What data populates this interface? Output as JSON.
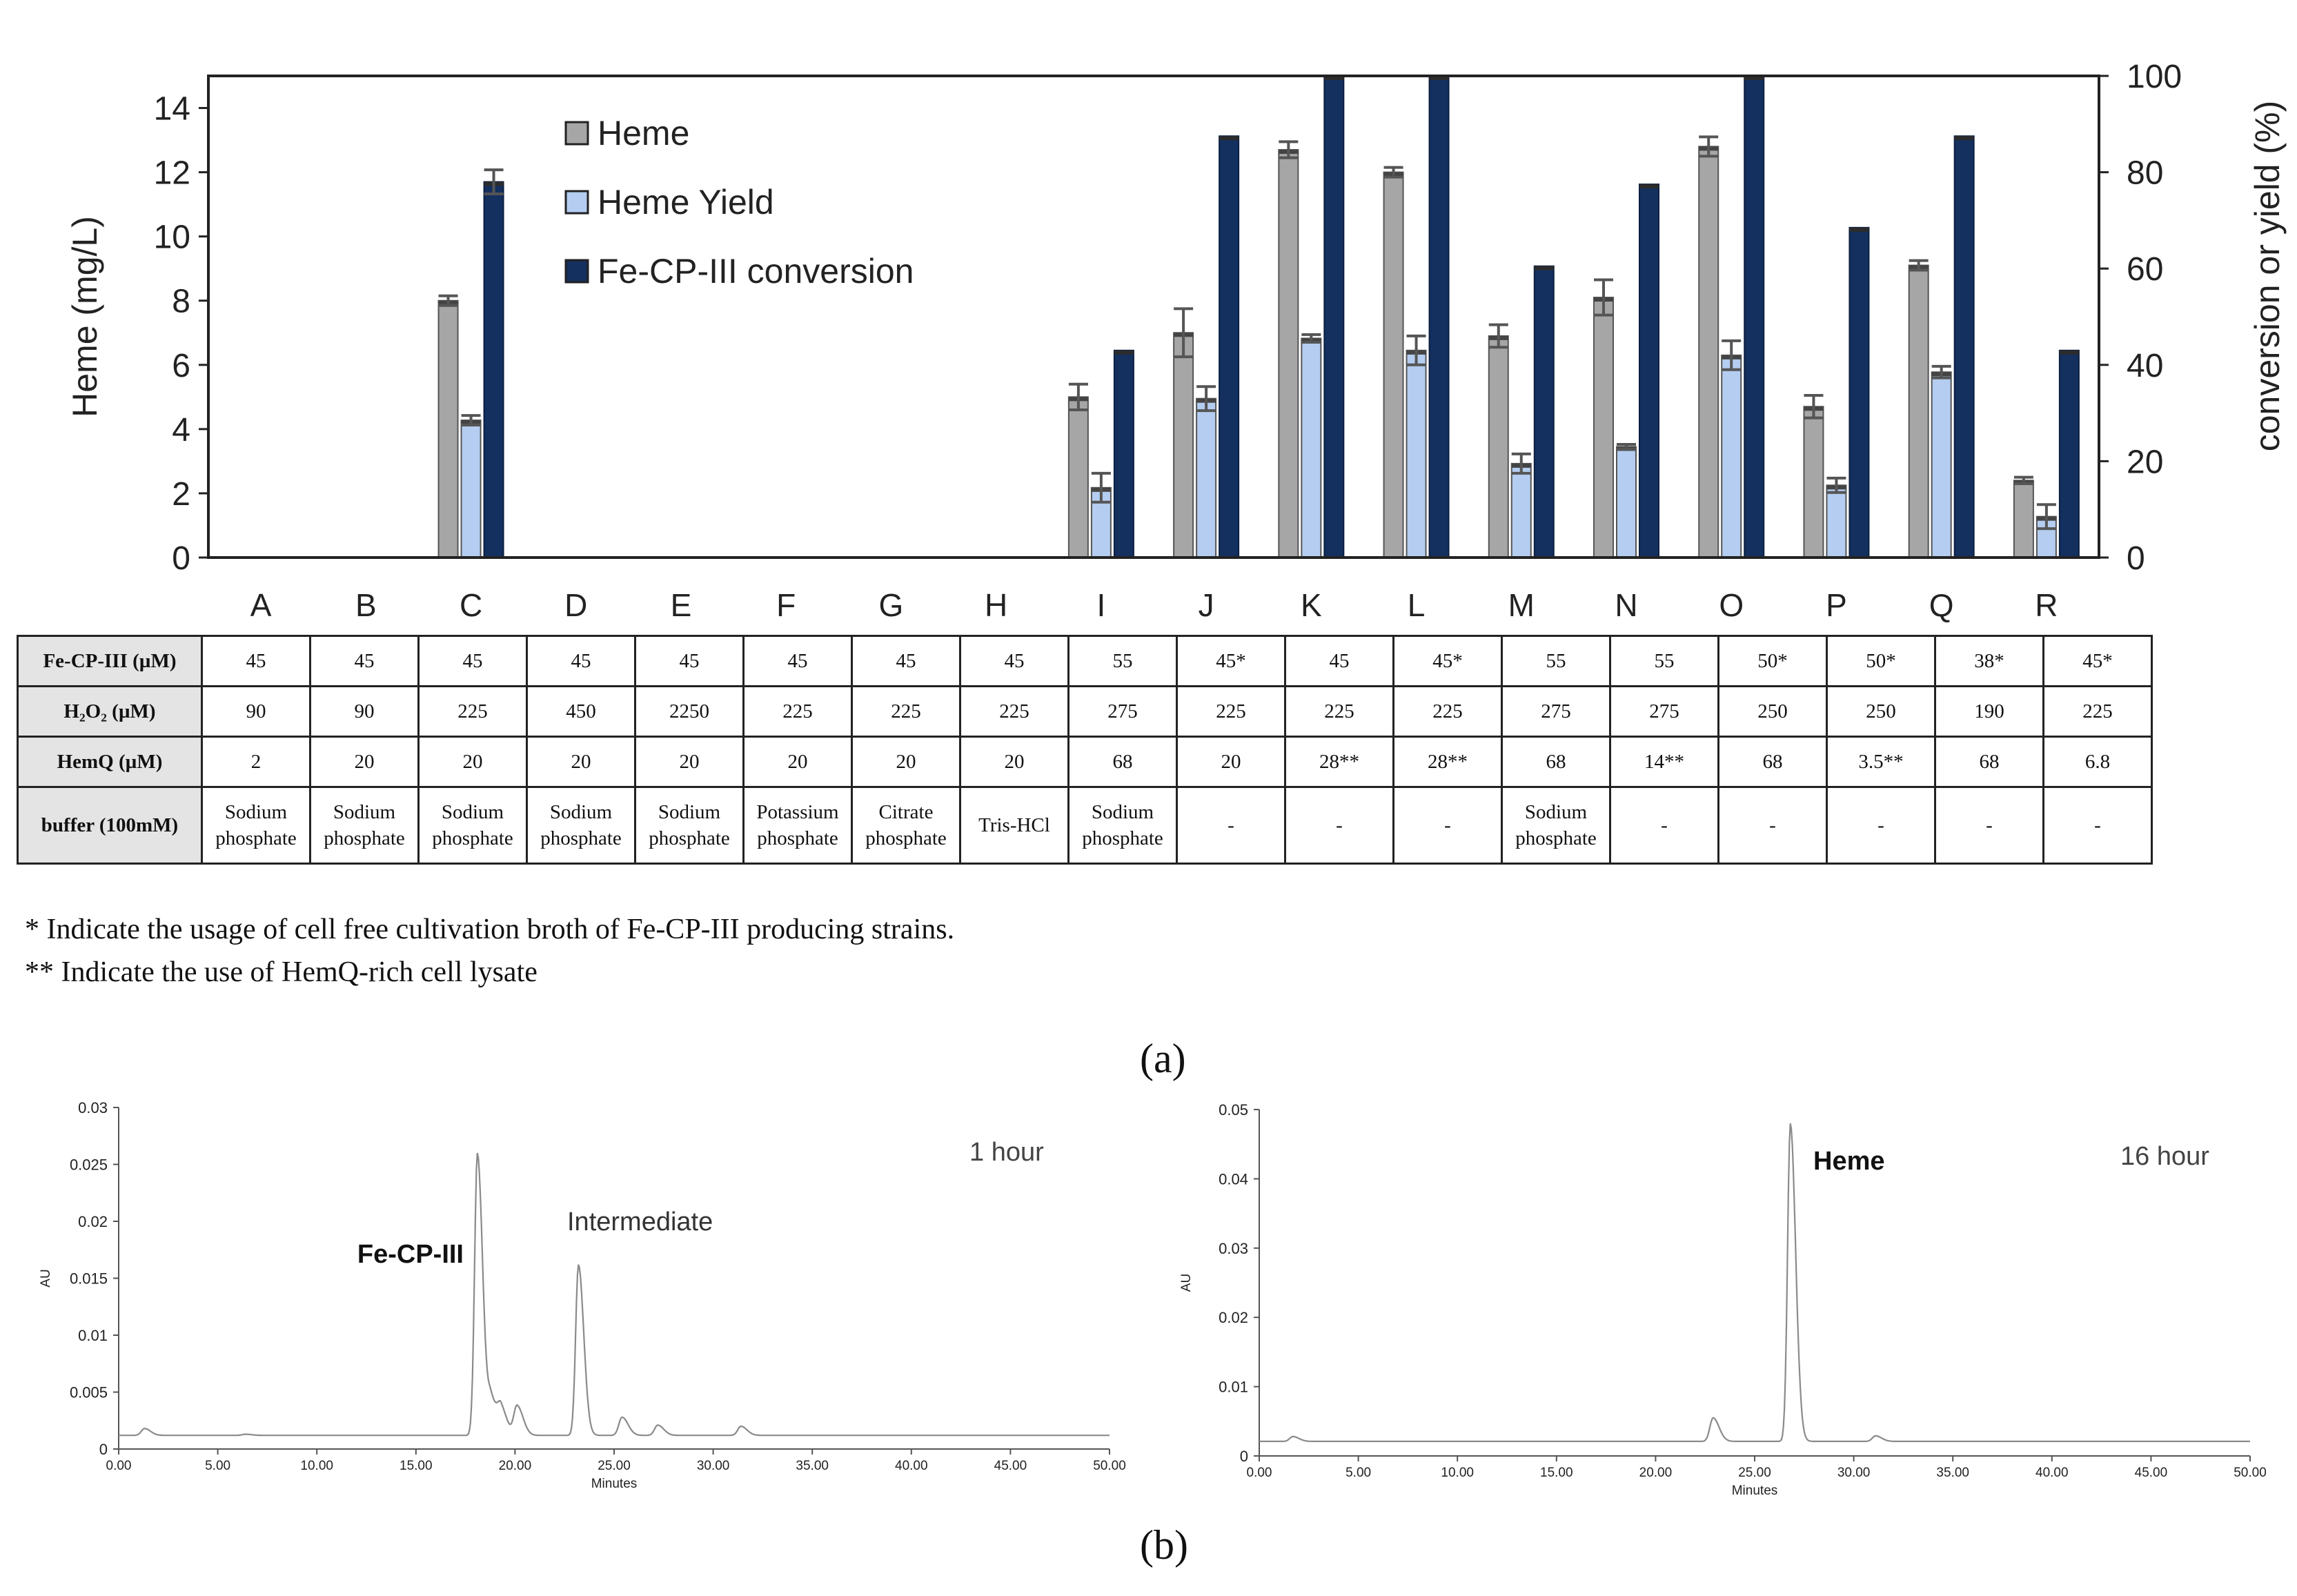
{
  "chart_data": [
    {
      "type": "bar",
      "panel": "a",
      "categories": [
        "A",
        "B",
        "C",
        "D",
        "E",
        "F",
        "G",
        "H",
        "I",
        "J",
        "K",
        "L",
        "M",
        "N",
        "O",
        "P",
        "Q",
        "R"
      ],
      "ylabel_left": "Heme (mg/L)",
      "ylabel_right": "conversion or yield (%)",
      "ylim_left": [
        0,
        15
      ],
      "ylim_right": [
        0,
        100
      ],
      "yticks_left": [
        "0",
        "2",
        "4",
        "6",
        "8",
        "10",
        "12",
        "14"
      ],
      "yticks_right": [
        "0",
        "20",
        "40",
        "60",
        "80",
        "100"
      ],
      "legend_position": "top-left",
      "series": [
        {
          "name": "Heme",
          "axis": "left",
          "color": "#a6a6a6",
          "values": [
            0,
            0,
            8.0,
            0,
            0,
            0,
            0,
            0,
            5.0,
            7.0,
            12.7,
            12.0,
            6.9,
            8.1,
            12.8,
            4.7,
            9.1,
            2.4
          ],
          "errors": [
            0,
            0,
            0.15,
            0,
            0,
            0,
            0,
            0,
            0.4,
            0.75,
            0.25,
            0.15,
            0.35,
            0.55,
            0.3,
            0.35,
            0.15,
            0.1
          ]
        },
        {
          "name": "Heme Yield",
          "axis": "right",
          "color": "#b4cdf0",
          "values": [
            0,
            0,
            28.5,
            0,
            0,
            0,
            0,
            0,
            14.5,
            33,
            45.5,
            43,
            19.5,
            23,
            42,
            15,
            38.5,
            8.5
          ],
          "errors": [
            0,
            0,
            1,
            0,
            0,
            0,
            0,
            0,
            3,
            2.5,
            0.8,
            3,
            2,
            0.5,
            3,
            1.5,
            1.2,
            2.5
          ]
        },
        {
          "name": "Fe-CP-III conversion",
          "axis": "right",
          "color": "#13305f",
          "values": [
            0,
            0,
            78,
            0,
            0,
            0,
            0,
            0,
            43,
            87.5,
            100,
            100,
            60.5,
            77.5,
            100,
            68.5,
            87.5,
            43
          ],
          "errors": [
            0,
            0,
            2.5,
            0,
            0,
            0,
            0,
            0,
            0,
            0,
            0,
            0,
            0,
            0,
            0,
            0,
            0,
            0
          ]
        }
      ]
    },
    {
      "type": "line",
      "panel": "b-left",
      "xlabel": "Minutes",
      "ylabel": "AU",
      "annotation": "1 hour",
      "xlim": [
        0,
        50
      ],
      "ylim": [
        0,
        0.03
      ],
      "xticks": [
        "0.00",
        "5.00",
        "10.00",
        "15.00",
        "20.00",
        "25.00",
        "30.00",
        "35.00",
        "40.00",
        "45.00",
        "50.00"
      ],
      "yticks": [
        "0",
        "0.005",
        "0.01",
        "0.015",
        "0.02",
        "0.025",
        "0.03"
      ],
      "peaks": [
        {
          "label": "Fe-CP-III",
          "x": 18.1,
          "y": 0.026
        },
        {
          "label": "Intermediate",
          "x": 23.2,
          "y": 0.0162
        }
      ],
      "baseline": 0.0012,
      "minor_peaks": [
        [
          1.3,
          0.0018
        ],
        [
          6.4,
          0.0013
        ],
        [
          18.8,
          0.0043
        ],
        [
          19.3,
          0.0033
        ],
        [
          20.1,
          0.0038
        ],
        [
          25.4,
          0.0028
        ],
        [
          27.2,
          0.0021
        ],
        [
          31.4,
          0.002
        ]
      ]
    },
    {
      "type": "line",
      "panel": "b-right",
      "xlabel": "Minutes",
      "ylabel": "AU",
      "annotation": "16 hour",
      "xlim": [
        0,
        50
      ],
      "ylim": [
        0,
        0.05
      ],
      "xticks": [
        "0.00",
        "5.00",
        "10.00",
        "15.00",
        "20.00",
        "25.00",
        "30.00",
        "35.00",
        "40.00",
        "45.00",
        "50.00"
      ],
      "yticks": [
        "0",
        "0.01",
        "0.02",
        "0.03",
        "0.04",
        "0.05"
      ],
      "peaks": [
        {
          "label": "Heme",
          "x": 26.8,
          "y": 0.048
        }
      ],
      "baseline": 0.0021,
      "minor_peaks": [
        [
          1.7,
          0.0028
        ],
        [
          22.9,
          0.0055
        ],
        [
          31.1,
          0.0029
        ]
      ]
    }
  ],
  "table": {
    "columns": [
      "A",
      "B",
      "C",
      "D",
      "E",
      "F",
      "G",
      "H",
      "I",
      "J",
      "K",
      "L",
      "M",
      "N",
      "O",
      "P",
      "Q",
      "R"
    ],
    "rows": [
      {
        "header": "Fe-CP-III (µM)",
        "cells": [
          "45",
          "45",
          "45",
          "45",
          "45",
          "45",
          "45",
          "45",
          "55",
          "45*",
          "45",
          "45*",
          "55",
          "55",
          "50*",
          "50*",
          "38*",
          "45*"
        ]
      },
      {
        "header": "H₂O₂ (µM)",
        "cells": [
          "90",
          "90",
          "225",
          "450",
          "2250",
          "225",
          "225",
          "225",
          "275",
          "225",
          "225",
          "225",
          "275",
          "275",
          "250",
          "250",
          "190",
          "225"
        ]
      },
      {
        "header": "HemQ (µM)",
        "cells": [
          "2",
          "20",
          "20",
          "20",
          "20",
          "20",
          "20",
          "20",
          "68",
          "20",
          "28**",
          "28**",
          "68",
          "14**",
          "68",
          "3.5**",
          "68",
          "6.8"
        ]
      },
      {
        "header": "buffer (100mM)",
        "cells": [
          "Sodium phosphate",
          "Sodium phosphate",
          "Sodium phosphate",
          "Sodium phosphate",
          "Sodium phosphate",
          "Potassium phosphate",
          "Citrate phosphate",
          "Tris-HCl",
          "Sodium phosphate",
          "-",
          "-",
          "-",
          "Sodium phosphate",
          "-",
          "-",
          "-",
          "-",
          "-"
        ]
      }
    ]
  },
  "notes": {
    "n1": "* Indicate the usage of cell free cultivation broth of Fe-CP-III producing strains.",
    "n2": "** Indicate the use of HemQ-rich cell lysate"
  },
  "panel_labels": {
    "a": "(a)",
    "b": "(b)"
  }
}
